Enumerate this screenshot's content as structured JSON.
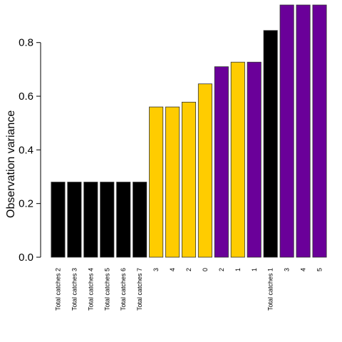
{
  "chart_data": {
    "type": "bar",
    "ylabel": "Observation variance",
    "xlabel": "",
    "ylim": [
      0,
      0.94
    ],
    "yticks": [
      0.0,
      0.2,
      0.4,
      0.6,
      0.8
    ],
    "ytick_labels": [
      "0.0",
      "0.2",
      "0.4",
      "0.6",
      "0.8"
    ],
    "grid": false,
    "categories": [
      "Total catches 2",
      "Total catches 3",
      "Total catches 4",
      "Total catches 5",
      "Total catches 6",
      "Total catches 7",
      "3",
      "4",
      "2",
      "0",
      "2",
      "1",
      "1",
      "Total catches 1",
      "3",
      "4",
      "5"
    ],
    "values": [
      0.28,
      0.28,
      0.28,
      0.28,
      0.28,
      0.28,
      0.56,
      0.56,
      0.578,
      0.646,
      0.71,
      0.727,
      0.727,
      0.845,
      0.94,
      0.94,
      0.94
    ],
    "colors": [
      "#000000",
      "#000000",
      "#000000",
      "#000000",
      "#000000",
      "#000000",
      "#FFCC00",
      "#FFCC00",
      "#FFCC00",
      "#FFCC00",
      "#6A0099",
      "#FFCC00",
      "#6A0099",
      "#000000",
      "#6A0099",
      "#6A0099",
      "#6A0099"
    ]
  }
}
